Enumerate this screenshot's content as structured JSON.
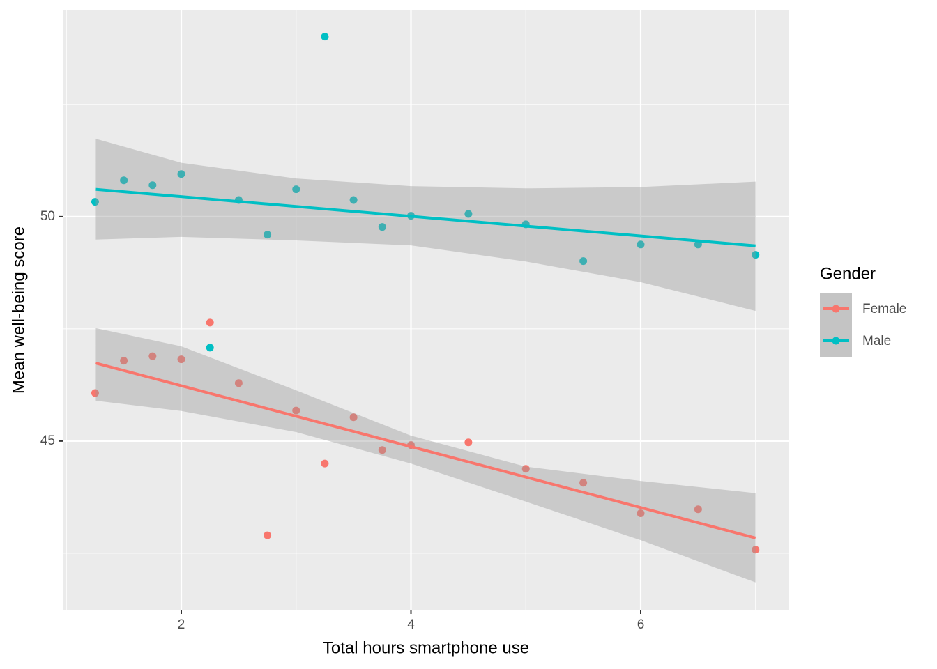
{
  "chart_data": {
    "type": "scatter",
    "xlabel": "Total hours smartphone use",
    "ylabel": "Mean well-being score",
    "legend_title": "Gender",
    "legend_position": "right",
    "grid": true,
    "xlim": [
      0.968,
      7.293
    ],
    "ylim": [
      41.24,
      54.61
    ],
    "xticks": [
      2,
      4,
      6
    ],
    "yticks": [
      45,
      50
    ],
    "x_minor_breaks": [
      1,
      3,
      5,
      7
    ],
    "y_minor_breaks": [
      42.5,
      47.5,
      52.5
    ],
    "series": [
      {
        "name": "Female",
        "color": "#F8766D",
        "x": [
          1.25,
          1.5,
          1.75,
          2,
          2.25,
          2.5,
          2.75,
          3,
          3.25,
          3.5,
          3.75,
          4,
          4.5,
          5,
          5.5,
          6,
          6.5,
          7
        ],
        "values": [
          46.07,
          46.79,
          46.89,
          46.82,
          47.64,
          46.29,
          42.9,
          45.68,
          44.5,
          45.53,
          44.8,
          44.91,
          44.97,
          44.38,
          44.07,
          43.39,
          43.48,
          42.58
        ],
        "fit": {
          "x": [
            1.25,
            7
          ],
          "values": [
            46.74,
            42.84
          ]
        },
        "band": {
          "x": [
            1.25,
            2,
            3,
            4,
            5,
            6,
            7
          ],
          "upper": [
            47.52,
            47.11,
            46.13,
            45.12,
            44.43,
            44.11,
            43.84
          ],
          "lower": [
            45.9,
            45.67,
            45.2,
            44.5,
            43.65,
            42.79,
            41.85
          ]
        }
      },
      {
        "name": "Male",
        "color": "#00BFC4",
        "x": [
          1.25,
          1.5,
          1.75,
          2,
          2.25,
          2.5,
          2.75,
          3,
          3.25,
          3.5,
          3.75,
          4,
          4.5,
          5,
          5.5,
          6,
          6.5,
          7
        ],
        "values": [
          50.33,
          50.81,
          50.7,
          50.95,
          47.08,
          50.37,
          49.6,
          50.61,
          54.01,
          50.37,
          49.77,
          50.02,
          50.06,
          49.83,
          49.01,
          49.38,
          49.38,
          49.15
        ],
        "fit": {
          "x": [
            1.25,
            7
          ],
          "values": [
            50.61,
            49.35
          ]
        },
        "band": {
          "x": [
            1.25,
            2,
            3,
            4,
            5,
            6,
            7
          ],
          "upper": [
            51.74,
            51.2,
            50.85,
            50.68,
            50.63,
            50.66,
            50.78
          ],
          "lower": [
            49.49,
            49.55,
            49.47,
            49.36,
            49.0,
            48.54,
            47.9
          ]
        }
      }
    ]
  }
}
